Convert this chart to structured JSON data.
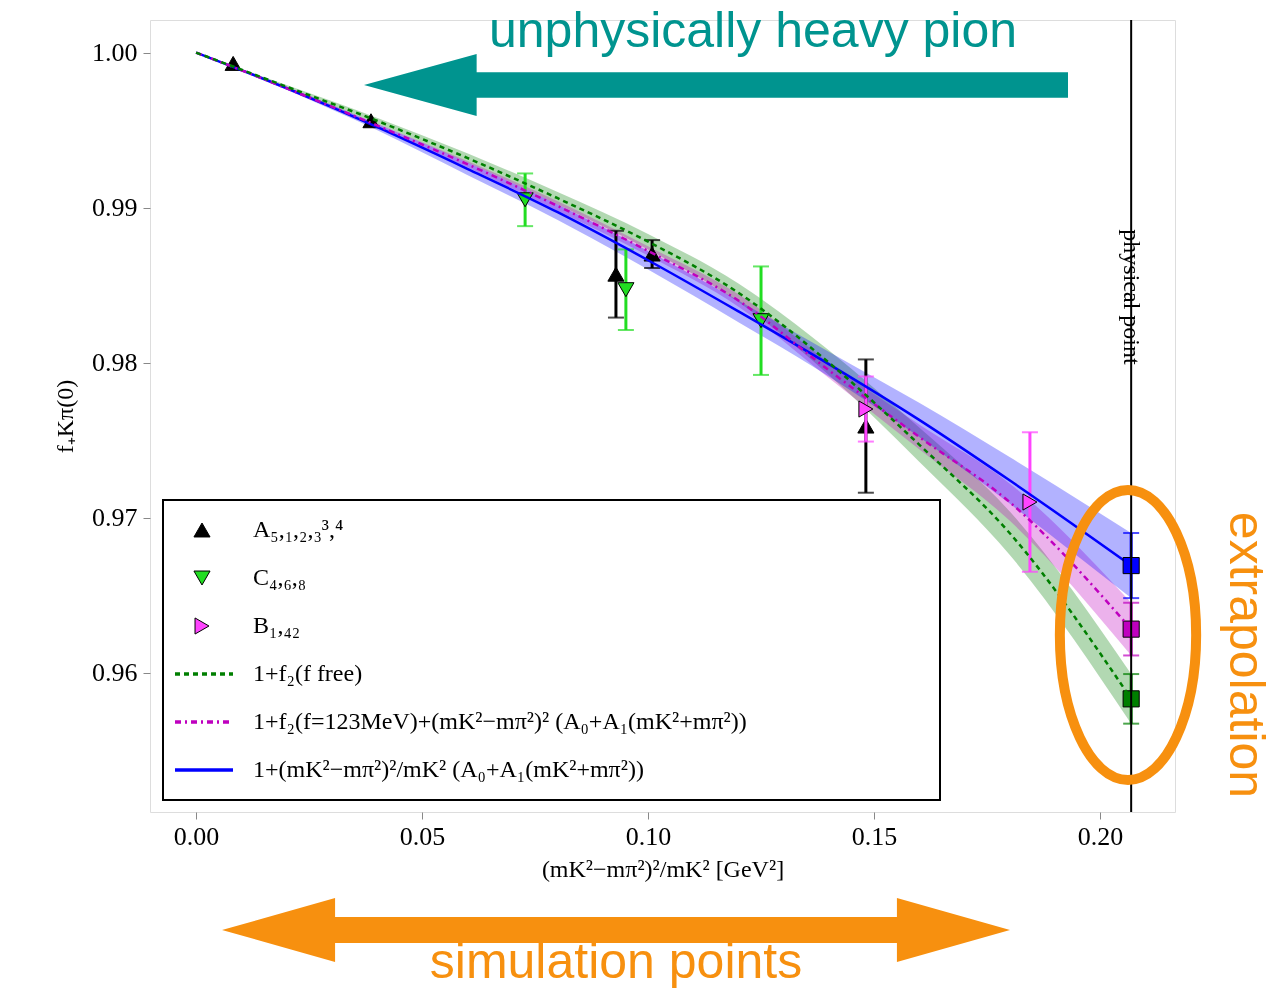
{
  "chart_data": {
    "type": "scatter",
    "xlabel": "(mK²−mπ²)²/mK² [GeV²]",
    "ylabel": "f₊Kπ(0)",
    "xlim": [
      -0.0102,
      0.2166
    ],
    "ylim": [
      0.951,
      1.0021
    ],
    "xticks": [
      {
        "value": 0,
        "label": "0.00"
      },
      {
        "value": 0.05,
        "label": "0.05"
      },
      {
        "value": 0.1,
        "label": "0.10"
      },
      {
        "value": 0.15,
        "label": "0.15"
      },
      {
        "value": 0.2,
        "label": "0.20"
      }
    ],
    "yticks": [
      {
        "value": 0.96,
        "label": "0.96"
      },
      {
        "value": 0.97,
        "label": "0.97"
      },
      {
        "value": 0.98,
        "label": "0.98"
      },
      {
        "value": 0.99,
        "label": "0.99"
      },
      {
        "value": 1.0,
        "label": "1.00"
      }
    ],
    "legend": "bottom left",
    "grid": false,
    "ref_lines": [
      {
        "axis": "x",
        "value": 0.2069,
        "label": "physical point",
        "color": "#000000"
      }
    ],
    "annotations": [
      "unphysically heavy pion",
      "simulation points",
      "extrapolation"
    ],
    "series": [
      {
        "name": "A₅,₁,₂,₃³,⁴",
        "marker": "triangle-up",
        "color": "#000000",
        "x": [
          0.0082,
          0.0387,
          0.0929,
          0.1009,
          0.1482
        ],
        "values": [
          0.9993,
          0.9956,
          0.9857,
          0.987,
          0.9759
        ],
        "errors": [
          null,
          null,
          0.0028,
          0.0009,
          0.0043
        ]
      },
      {
        "name": "C₄,₆,₈",
        "marker": "triangle-down",
        "color": "#22dd22",
        "x": [
          0.0728,
          0.0951,
          0.125
        ],
        "values": [
          0.9905,
          0.9847,
          0.9827
        ],
        "errors": [
          0.0017,
          0.0026,
          0.0035
        ]
      },
      {
        "name": "B₁,₄₂",
        "marker": "triangle-right",
        "color": "#ff44ff",
        "x": [
          0.1482,
          0.1845
        ],
        "values": [
          0.977,
          0.971
        ],
        "errors": [
          0.0021,
          0.0045
        ]
      },
      {
        "name": "1+f₂(f free)",
        "type": "line",
        "line_style": "dashed",
        "color": "#007f00",
        "x": [
          0,
          0.02,
          0.04,
          0.06,
          0.08,
          0.1,
          0.12,
          0.14,
          0.16,
          0.18,
          0.2069
        ],
        "values": [
          1.0,
          0.9978,
          0.9956,
          0.9932,
          0.9906,
          0.9878,
          0.9845,
          0.98,
          0.9747,
          0.969,
          0.9583
        ],
        "lower": [
          1.0,
          0.9977,
          0.9954,
          0.9929,
          0.9902,
          0.9873,
          0.9839,
          0.9792,
          0.9736,
          0.9676,
          0.9567
        ],
        "upper": [
          1.0,
          0.9979,
          0.9958,
          0.9935,
          0.991,
          0.9883,
          0.9851,
          0.9808,
          0.9758,
          0.9704,
          0.9599
        ]
      },
      {
        "name": "1+f₂(f=123MeV)+(mK²−mπ²)² (A₀+A₁(mK²+mπ²))",
        "type": "line",
        "line_style": "dotted",
        "color": "#bf00bf",
        "x": [
          0,
          0.02,
          0.04,
          0.06,
          0.08,
          0.1,
          0.12,
          0.14,
          0.16,
          0.18,
          0.2069
        ],
        "values": [
          1.0,
          0.9977,
          0.9953,
          0.9928,
          0.9901,
          0.9872,
          0.984,
          0.9795,
          0.9752,
          0.971,
          0.9628
        ],
        "lower": [
          1.0,
          0.9976,
          0.9952,
          0.9926,
          0.9898,
          0.9869,
          0.9836,
          0.979,
          0.9744,
          0.9698,
          0.9611
        ],
        "upper": [
          1.0,
          0.9978,
          0.9954,
          0.993,
          0.9904,
          0.9875,
          0.9844,
          0.98,
          0.976,
          0.9722,
          0.9645
        ]
      },
      {
        "name": "1+(mK²−mπ²)²/mK² (A₀+A₁(mK²+mπ²))",
        "type": "line",
        "line_style": "solid",
        "color": "#0000ff",
        "x": [
          0,
          0.02,
          0.04,
          0.06,
          0.08,
          0.1,
          0.12,
          0.14,
          0.16,
          0.18,
          0.2069
        ],
        "values": [
          1.0,
          0.9977,
          0.9952,
          0.9925,
          0.9897,
          0.9866,
          0.9833,
          0.9799,
          0.9763,
          0.9724,
          0.9669
        ],
        "lower": [
          1.0,
          0.9976,
          0.995,
          0.9921,
          0.9892,
          0.986,
          0.9826,
          0.9791,
          0.9752,
          0.9709,
          0.9648
        ],
        "upper": [
          1.0,
          0.9978,
          0.9954,
          0.9929,
          0.9902,
          0.9872,
          0.984,
          0.9807,
          0.9774,
          0.9739,
          0.969
        ]
      },
      {
        "marker": "square",
        "color": "#0000ff",
        "x": [
          0.2069
        ],
        "values": [
          0.9669
        ],
        "errors": [
          0.0021
        ]
      },
      {
        "marker": "square",
        "color": "#bf00bf",
        "x": [
          0.2069
        ],
        "values": [
          0.9628
        ],
        "errors": [
          0.0017
        ]
      },
      {
        "marker": "square",
        "color": "#007f00",
        "x": [
          0.2069
        ],
        "values": [
          0.9583
        ],
        "errors": [
          0.0016
        ]
      }
    ]
  }
}
